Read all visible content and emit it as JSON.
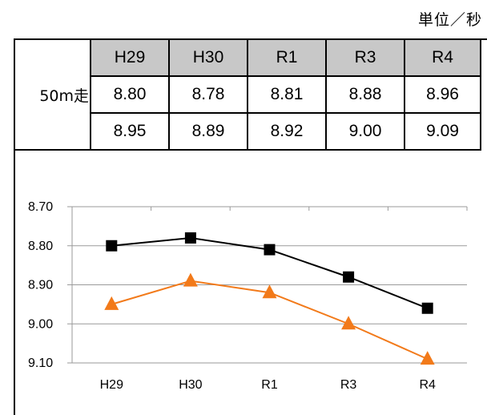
{
  "unit_label": "単位／秒",
  "table": {
    "row_label": "50m走",
    "headers": [
      "H29",
      "H30",
      "R1",
      "R3",
      "R4"
    ],
    "rows": [
      [
        "8.80",
        "8.78",
        "8.81",
        "8.88",
        "8.96"
      ],
      [
        "8.95",
        "8.89",
        "8.92",
        "9.00",
        "9.09"
      ]
    ]
  },
  "chart_data": {
    "type": "line",
    "categories": [
      "H29",
      "H30",
      "R1",
      "R3",
      "R4"
    ],
    "y_ticks": [
      "8.70",
      "8.80",
      "8.90",
      "9.00",
      "9.10"
    ],
    "ylim": [
      9.1,
      8.7
    ],
    "y_reversed": true,
    "grid": true,
    "series": [
      {
        "values": [
          8.8,
          8.78,
          8.81,
          8.88,
          8.96
        ],
        "color": "#000000",
        "marker": "square"
      },
      {
        "values": [
          8.95,
          8.89,
          8.92,
          9.0,
          9.09
        ],
        "color": "#f27a1a",
        "marker": "triangle"
      }
    ]
  }
}
